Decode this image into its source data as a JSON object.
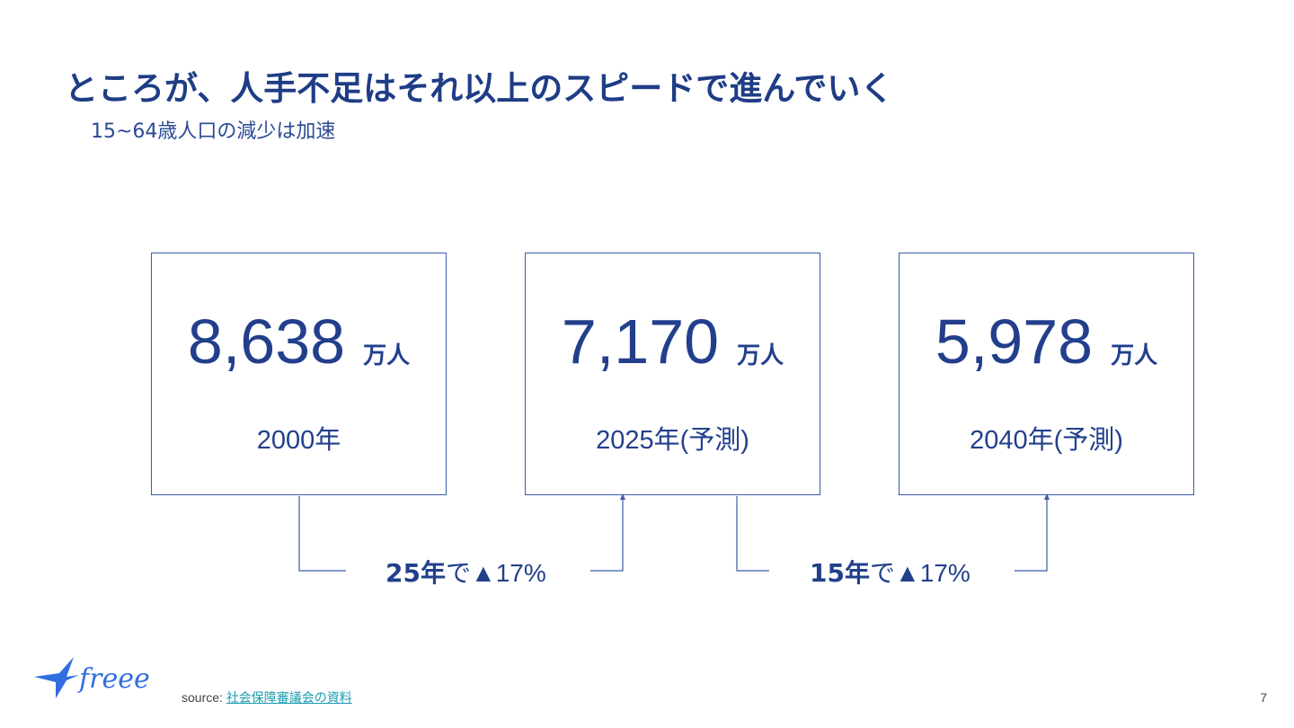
{
  "slide": {
    "title": "ところが、人手不足はそれ以上のスピードで進んでいく",
    "subtitle": "15~64歳人口の減少は加速",
    "page_number": "7"
  },
  "boxes": [
    {
      "value": "8,638",
      "unit": "万人",
      "year": "2000年"
    },
    {
      "value": "7,170",
      "unit": "万人",
      "year": "2025年(予測)"
    },
    {
      "value": "5,978",
      "unit": "万人",
      "year": "2040年(予測)"
    }
  ],
  "changes": [
    {
      "years": "25年",
      "suffix": "で",
      "delta": "▲17%"
    },
    {
      "years": "15年",
      "suffix": "で",
      "delta": "▲17%"
    }
  ],
  "footer": {
    "source_label": "source:",
    "source_link": "社会保障審議会の資料",
    "logo_text": "freee"
  },
  "colors": {
    "primary": "#223f8c",
    "link": "#1a9bb0",
    "border": "#3a5ba8"
  }
}
